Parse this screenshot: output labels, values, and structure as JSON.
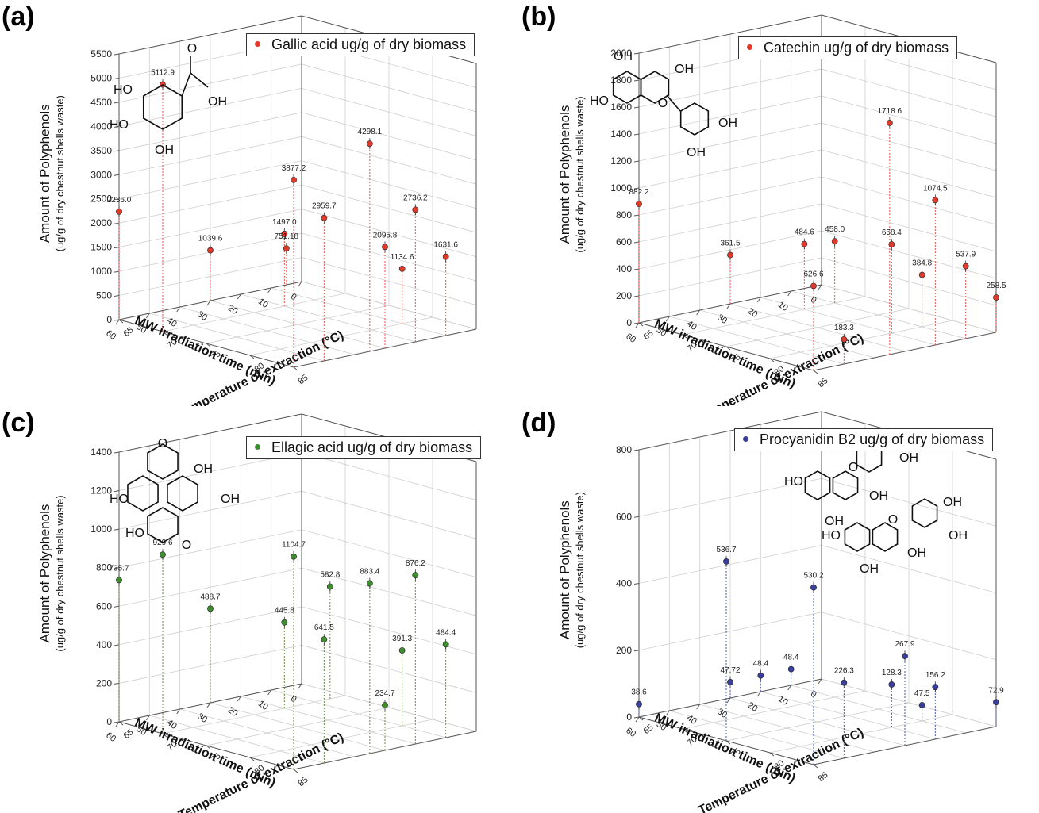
{
  "panels": [
    {
      "label": "(a)",
      "legend": "Gallic acid ug/g of dry biomass",
      "color": "#e03a2c",
      "line_color": "#e05a4a",
      "ylabel_main": "Amount of Polyphenols",
      "ylabel_sub": "(ug/g of dry chestnut shells waste)",
      "xlabel": "MW irradiation time (min)",
      "zlabel": "Temperature of extraction (°C)",
      "molecule": "gallic-acid",
      "mol_labels": [
        "HO",
        "HO",
        "OH",
        "OH",
        "O"
      ]
    },
    {
      "label": "(b)",
      "legend": "Catechin ug/g of dry biomass",
      "color": "#e03a2c",
      "line_color": "#e05a4a",
      "ylabel_main": "Amount of Polyphenols",
      "ylabel_sub": "(ug/g of dry chestnut shells waste)",
      "xlabel": "MW irradiation time (min)",
      "zlabel": "Temperature of extraction (°C)",
      "molecule": "catechin",
      "mol_labels": [
        "OH",
        "OH",
        "HO",
        "OH",
        "OH",
        "O"
      ]
    },
    {
      "label": "(c)",
      "legend": "Ellagic acid ug/g of dry biomass",
      "color": "#3e8e2f",
      "line_color": "#6a8a3a",
      "ylabel_main": "Amount of Polyphenols",
      "ylabel_sub": "(ug/g of dry chestnut shells waste)",
      "xlabel": "MW irradiation time (min)",
      "zlabel": "Temperature of extraction (°C)",
      "molecule": "ellagic-acid",
      "mol_labels": [
        "OH",
        "HO",
        "OH",
        "HO",
        "O",
        "O"
      ]
    },
    {
      "label": "(d)",
      "legend": "Procyanidin B2 ug/g of dry biomass",
      "color": "#3a3f9a",
      "line_color": "#4a5aa8",
      "ylabel_main": "Amount of Polyphenols",
      "ylabel_sub": "(ug/g of dry chestnut shells waste)",
      "xlabel": "MW irradiation time (min)",
      "zlabel": "Temperature of extraction (°C)",
      "molecule": "procyanidin-b2",
      "mol_labels": [
        "OH",
        "OH",
        "HO",
        "OH",
        "OH",
        "OH",
        "OH",
        "HO",
        "OH",
        "OH",
        "O",
        "O"
      ]
    }
  ],
  "chart_data": [
    {
      "type": "scatter",
      "x_ticks": [
        0,
        10,
        20,
        30,
        40,
        50,
        60
      ],
      "z_ticks": [
        65,
        70,
        75,
        80,
        85
      ],
      "xlim": [
        0,
        60
      ],
      "zlim": [
        65,
        85
      ],
      "ylim": [
        0,
        5500
      ],
      "y_ticks": [
        0,
        500,
        1000,
        1500,
        2000,
        2500,
        3000,
        3500,
        4000,
        4500,
        5000,
        5500
      ],
      "points": [
        {
          "time": 60,
          "temp": 65,
          "value": 2236.0,
          "label": "2236.0"
        },
        {
          "time": 30,
          "temp": 65,
          "value": 1039.6,
          "label": "1039.6"
        },
        {
          "time": 20,
          "temp": 70,
          "value": 1497.0,
          "label": "1497.0"
        },
        {
          "time": 5,
          "temp": 65,
          "value": 751.18,
          "label": "751.18"
        },
        {
          "time": 60,
          "temp": 70,
          "value": 5112.9,
          "label": "5112.9"
        },
        {
          "time": 60,
          "temp": 85,
          "value": 3877.2,
          "label": "3877.2"
        },
        {
          "time": 50,
          "temp": 85,
          "value": 2959.7,
          "label": "2959.7"
        },
        {
          "time": 30,
          "temp": 85,
          "value": 2095.8,
          "label": "2095.8"
        },
        {
          "time": 10,
          "temp": 80,
          "value": 1134.6,
          "label": "1134.6"
        },
        {
          "time": 35,
          "temp": 85,
          "value": 4298.1,
          "label": "4298.1"
        },
        {
          "time": 20,
          "temp": 85,
          "value": 2736.2,
          "label": "2736.2"
        },
        {
          "time": 10,
          "temp": 85,
          "value": 1631.6,
          "label": "1631.6"
        }
      ]
    },
    {
      "type": "scatter",
      "x_ticks": [
        0,
        10,
        20,
        30,
        40,
        50,
        60
      ],
      "z_ticks": [
        65,
        70,
        75,
        80,
        85
      ],
      "xlim": [
        0,
        60
      ],
      "zlim": [
        65,
        85
      ],
      "ylim": [
        0,
        2000
      ],
      "y_ticks": [
        0,
        200,
        400,
        600,
        800,
        1000,
        1200,
        1400,
        1600,
        1800,
        2000
      ],
      "points": [
        {
          "time": 60,
          "temp": 65,
          "value": 882.2,
          "label": "882.2"
        },
        {
          "time": 50,
          "temp": 85,
          "value": 183.3,
          "label": "183.3"
        },
        {
          "time": 30,
          "temp": 65,
          "value": 361.5,
          "label": "361.5"
        },
        {
          "time": 20,
          "temp": 70,
          "value": 484.6,
          "label": "484.6"
        },
        {
          "time": 10,
          "temp": 70,
          "value": 458.0,
          "label": "458.0"
        },
        {
          "time": 60,
          "temp": 85,
          "value": 626.6,
          "label": "626.6"
        },
        {
          "time": 35,
          "temp": 85,
          "value": 1718.6,
          "label": "1718.6"
        },
        {
          "time": 20,
          "temp": 80,
          "value": 658.4,
          "label": "658.4"
        },
        {
          "time": 20,
          "temp": 85,
          "value": 1074.5,
          "label": "1074.5"
        },
        {
          "time": 10,
          "temp": 80,
          "value": 384.8,
          "label": "384.8"
        },
        {
          "time": 10,
          "temp": 85,
          "value": 537.9,
          "label": "537.9"
        },
        {
          "time": 0,
          "temp": 85,
          "value": 258.5,
          "label": "258.5"
        }
      ]
    },
    {
      "type": "scatter",
      "x_ticks": [
        0,
        10,
        20,
        30,
        40,
        50,
        60
      ],
      "z_ticks": [
        65,
        70,
        75,
        80,
        85
      ],
      "xlim": [
        0,
        60
      ],
      "zlim": [
        65,
        85
      ],
      "ylim": [
        0,
        1400
      ],
      "y_ticks": [
        0,
        200,
        400,
        600,
        800,
        1000,
        1200,
        1400
      ],
      "points": [
        {
          "time": 60,
          "temp": 65,
          "value": 735.7,
          "label": "735.7"
        },
        {
          "time": 30,
          "temp": 65,
          "value": 488.7,
          "label": "488.7"
        },
        {
          "time": 20,
          "temp": 70,
          "value": 445.8,
          "label": "445.8"
        },
        {
          "time": 5,
          "temp": 70,
          "value": 582.8,
          "label": "582.8"
        },
        {
          "time": 60,
          "temp": 70,
          "value": 929.6,
          "label": "929.6"
        },
        {
          "time": 60,
          "temp": 85,
          "value": 1104.7,
          "label": "1104.7"
        },
        {
          "time": 50,
          "temp": 85,
          "value": 641.5,
          "label": "641.5"
        },
        {
          "time": 30,
          "temp": 85,
          "value": 234.7,
          "label": "234.7"
        },
        {
          "time": 35,
          "temp": 85,
          "value": 883.4,
          "label": "883.4"
        },
        {
          "time": 10,
          "temp": 80,
          "value": 391.3,
          "label": "391.3"
        },
        {
          "time": 20,
          "temp": 85,
          "value": 876.2,
          "label": "876.2"
        },
        {
          "time": 10,
          "temp": 85,
          "value": 484.4,
          "label": "484.4"
        }
      ]
    },
    {
      "type": "scatter",
      "x_ticks": [
        0,
        10,
        20,
        30,
        40,
        50,
        60
      ],
      "z_ticks": [
        65,
        70,
        75,
        80,
        85
      ],
      "xlim": [
        0,
        60
      ],
      "zlim": [
        65,
        85
      ],
      "ylim": [
        0,
        800
      ],
      "y_ticks": [
        0,
        200,
        400,
        600,
        800
      ],
      "points": [
        {
          "time": 60,
          "temp": 65,
          "value": 38.6,
          "label": "38.6"
        },
        {
          "time": 30,
          "temp": 65,
          "value": 47.72,
          "label": "47.72"
        },
        {
          "time": 20,
          "temp": 65,
          "value": 48.4,
          "label": "48.4"
        },
        {
          "time": 10,
          "temp": 65,
          "value": 48.4,
          "label": "48.4"
        },
        {
          "time": 60,
          "temp": 75,
          "value": 536.7,
          "label": "536.7"
        },
        {
          "time": 60,
          "temp": 85,
          "value": 530.2,
          "label": "530.2"
        },
        {
          "time": 50,
          "temp": 85,
          "value": 226.3,
          "label": "226.3"
        },
        {
          "time": 30,
          "temp": 85,
          "value": 267.9,
          "label": "267.9"
        },
        {
          "time": 20,
          "temp": 80,
          "value": 128.3,
          "label": "128.3"
        },
        {
          "time": 10,
          "temp": 80,
          "value": 47.5,
          "label": "47.5"
        },
        {
          "time": 20,
          "temp": 85,
          "value": 156.2,
          "label": "156.2"
        },
        {
          "time": 0,
          "temp": 85,
          "value": 72.9,
          "label": "72.9"
        }
      ]
    }
  ]
}
